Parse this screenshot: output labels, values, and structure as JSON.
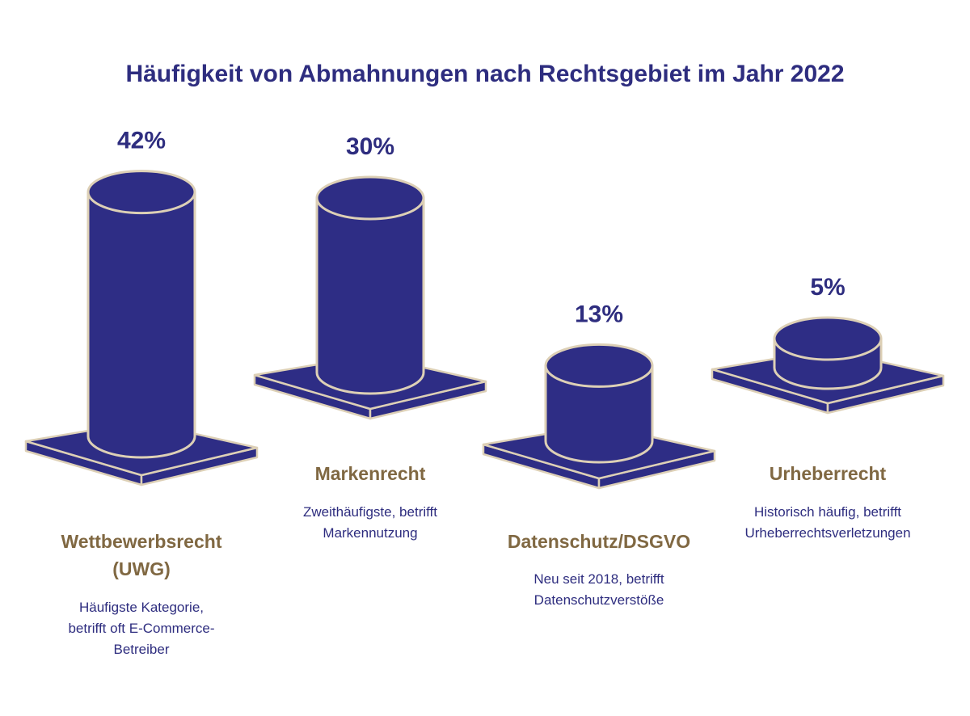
{
  "chart_data": {
    "type": "bar",
    "title": "Häufigkeit von Abmahnungen nach Rechtsgebiet im Jahr 2022",
    "categories": [
      {
        "name_lines": [
          "Wettbewerbsrecht",
          "(UWG)"
        ],
        "desc_lines": [
          "Häufigste Kategorie,",
          "betrifft oft E-Commerce-",
          "Betreiber"
        ]
      },
      {
        "name_lines": [
          "Markenrecht"
        ],
        "desc_lines": [
          "Zweithäufigste, betrifft",
          "Markennutzung"
        ]
      },
      {
        "name_lines": [
          "Datenschutz/DSGVO"
        ],
        "desc_lines": [
          "Neu seit 2018, betrifft",
          "Datenschutzverstöße"
        ]
      },
      {
        "name_lines": [
          "Urheberrecht"
        ],
        "desc_lines": [
          "Historisch häufig, betrifft",
          "Urheberrechtsverletzungen"
        ]
      }
    ],
    "values": [
      42,
      30,
      13,
      5
    ],
    "value_labels": [
      "42%",
      "30%",
      "13%",
      "5%"
    ],
    "unit": "%",
    "colors": {
      "bar": "#2e2d85",
      "outline": "#ddd0b6",
      "title": "#2e2d7f",
      "category": "#806842",
      "description": "#2e2d7f"
    }
  }
}
